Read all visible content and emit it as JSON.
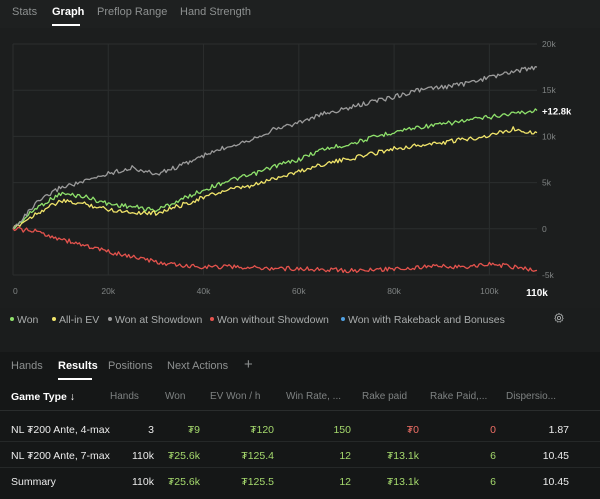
{
  "top_tabs": [
    "Stats",
    "Graph",
    "Preflop Range",
    "Hand Strength"
  ],
  "active_top_tab": "Graph",
  "chart_data": {
    "type": "line",
    "title": "",
    "xlabel": "",
    "ylabel": "",
    "x_ticks": [
      "0",
      "20k",
      "40k",
      "60k",
      "80k",
      "100k",
      "110k"
    ],
    "y_ticks": [
      "20k",
      "15k",
      "10k",
      "5k",
      "0",
      "-5k"
    ],
    "xlim": [
      0,
      110000
    ],
    "ylim": [
      -5000,
      20000
    ],
    "end_label": "+12.8k",
    "series": [
      {
        "name": "Won",
        "color": "#8ee06b",
        "x": [
          0,
          5000,
          10000,
          15000,
          20000,
          25000,
          30000,
          35000,
          40000,
          45000,
          50000,
          55000,
          60000,
          65000,
          70000,
          75000,
          80000,
          85000,
          90000,
          95000,
          100000,
          105000,
          110000
        ],
        "values": [
          0,
          2300,
          3800,
          3500,
          2700,
          2400,
          2000,
          3100,
          4200,
          5200,
          5800,
          6800,
          7500,
          8600,
          9100,
          9800,
          10500,
          11000,
          11300,
          11700,
          12100,
          12500,
          12800
        ]
      },
      {
        "name": "All-in EV",
        "color": "#f0e46a",
        "x": [
          0,
          5000,
          10000,
          15000,
          20000,
          25000,
          30000,
          35000,
          40000,
          45000,
          50000,
          55000,
          60000,
          65000,
          70000,
          75000,
          80000,
          85000,
          90000,
          95000,
          100000,
          105000,
          110000
        ],
        "values": [
          0,
          1700,
          3000,
          2700,
          2100,
          1800,
          1700,
          2500,
          3400,
          4200,
          4600,
          5500,
          6200,
          7000,
          7500,
          8100,
          8700,
          9000,
          9300,
          9700,
          10100,
          10800,
          10400
        ]
      },
      {
        "name": "Won at Showdown",
        "color": "#9b9b9b",
        "x": [
          0,
          5000,
          10000,
          15000,
          20000,
          25000,
          30000,
          35000,
          40000,
          45000,
          50000,
          55000,
          60000,
          65000,
          70000,
          75000,
          80000,
          85000,
          90000,
          95000,
          100000,
          105000,
          110000
        ],
        "values": [
          0,
          2800,
          4500,
          5100,
          6000,
          6600,
          5900,
          6800,
          7900,
          8900,
          9700,
          10800,
          11500,
          12400,
          13000,
          13700,
          14300,
          15000,
          15300,
          15700,
          16400,
          17000,
          17500
        ]
      },
      {
        "name": "Won without Showdown",
        "color": "#e4534d",
        "x": [
          0,
          5000,
          10000,
          15000,
          20000,
          25000,
          30000,
          35000,
          40000,
          45000,
          50000,
          55000,
          60000,
          65000,
          70000,
          75000,
          80000,
          85000,
          90000,
          95000,
          100000,
          105000,
          110000
        ],
        "values": [
          0,
          -300,
          -1100,
          -1800,
          -2500,
          -3000,
          -3600,
          -4000,
          -4100,
          -4100,
          -4200,
          -4300,
          -4300,
          -4400,
          -4500,
          -4500,
          -4300,
          -4200,
          -4000,
          -4200,
          -3800,
          -4100,
          -4500
        ]
      },
      {
        "name": "Won with Rakeback and Bonuses",
        "color": "#4f9fe0",
        "x": [],
        "values": []
      }
    ],
    "grid": true,
    "legend_placement": "bottom"
  },
  "legend": [
    {
      "label": "Won",
      "color": "#8ee06b"
    },
    {
      "label": "All-in EV",
      "color": "#f0e46a"
    },
    {
      "label": "Won at Showdown",
      "color": "#9b9b9b"
    },
    {
      "label": "Won without Showdown",
      "color": "#e4534d"
    },
    {
      "label": "Won with Rakeback and Bonuses",
      "color": "#4f9fe0"
    }
  ],
  "settings_icon": "gear-icon",
  "bottom_tabs": [
    "Hands",
    "Results",
    "Positions",
    "Next Actions"
  ],
  "active_bottom_tab": "Results",
  "add_tab_symbol": "+",
  "table": {
    "columns": [
      "Game Type ↓",
      "Hands",
      "Won",
      "EV Won / h",
      "Win Rate, ...",
      "Rake paid",
      "Rake Paid,...",
      "Dispersio..."
    ],
    "rows": [
      [
        "NL ₮200 Ante, 4-max",
        "3",
        "₮9",
        "₮120",
        "150",
        "₮0",
        "0",
        "1.87"
      ],
      [
        "NL ₮200 Ante, 7-max",
        "110k",
        "₮25.6k",
        "₮125.4",
        "12",
        "₮13.1k",
        "6",
        "10.45"
      ],
      [
        "Summary",
        "110k",
        "₮25.6k",
        "₮125.5",
        "12",
        "₮13.1k",
        "6",
        "10.45"
      ]
    ]
  }
}
